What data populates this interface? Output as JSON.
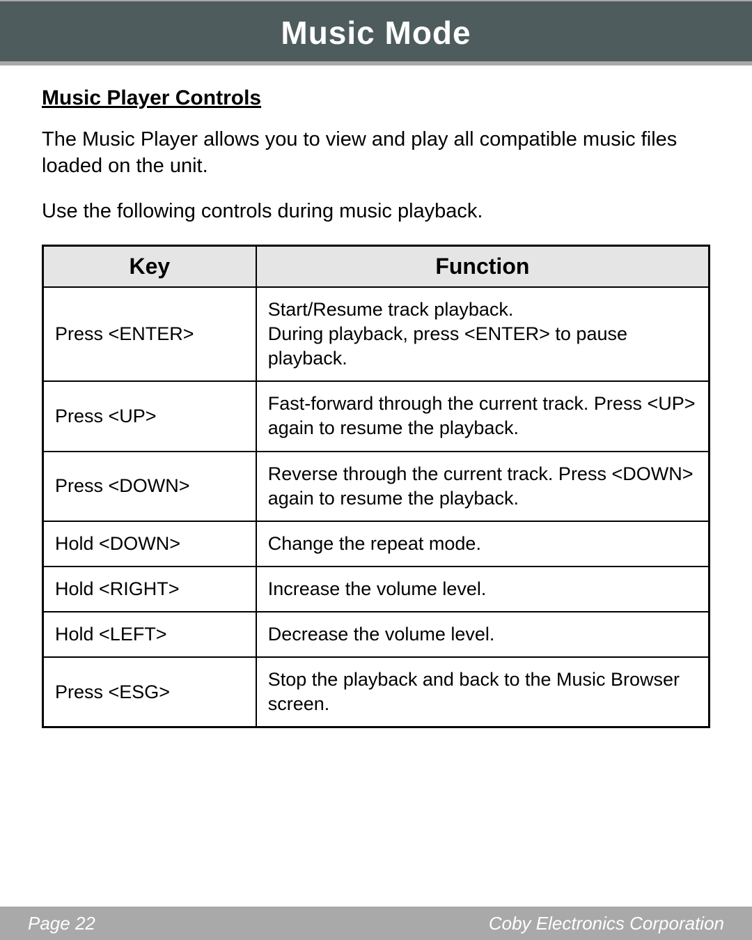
{
  "header": {
    "title": "Music Mode"
  },
  "section": {
    "subhead": "Music Player Controls",
    "para1": "The Music Player allows you to view and play all compatible music files loaded on the unit.",
    "para2": "Use the following controls during music playback."
  },
  "table": {
    "columns": [
      "Key",
      "Function"
    ],
    "col_widths": [
      "32%",
      "68%"
    ],
    "header_bg": "#e5e5e5",
    "border_color": "#000000",
    "rows": [
      {
        "key": "Press <ENTER>",
        "func": "Start/Resume track playback.\nDuring playback, press <ENTER> to pause playback."
      },
      {
        "key": "Press <UP>",
        "func": "Fast-forward through the current track. Press <UP> again to resume the playback."
      },
      {
        "key": "Press <DOWN>",
        "func": "Reverse through the current track. Press <DOWN> again to resume the playback."
      },
      {
        "key": "Hold <DOWN>",
        "func": "Change the repeat mode."
      },
      {
        "key": "Hold <RIGHT>",
        "func": "Increase the volume level."
      },
      {
        "key": "Hold <LEFT>",
        "func": "Decrease the volume level."
      },
      {
        "key": "Press <ESG>",
        "func": "Stop the playback and back to the Music Browser screen."
      }
    ]
  },
  "footer": {
    "page_label": "Page 22",
    "company": "Coby Electronics Corporation"
  },
  "colors": {
    "header_bg": "#4e5c5d",
    "footer_bg": "#a9a9a9",
    "header_text": "#ffffff",
    "body_text": "#000000"
  }
}
